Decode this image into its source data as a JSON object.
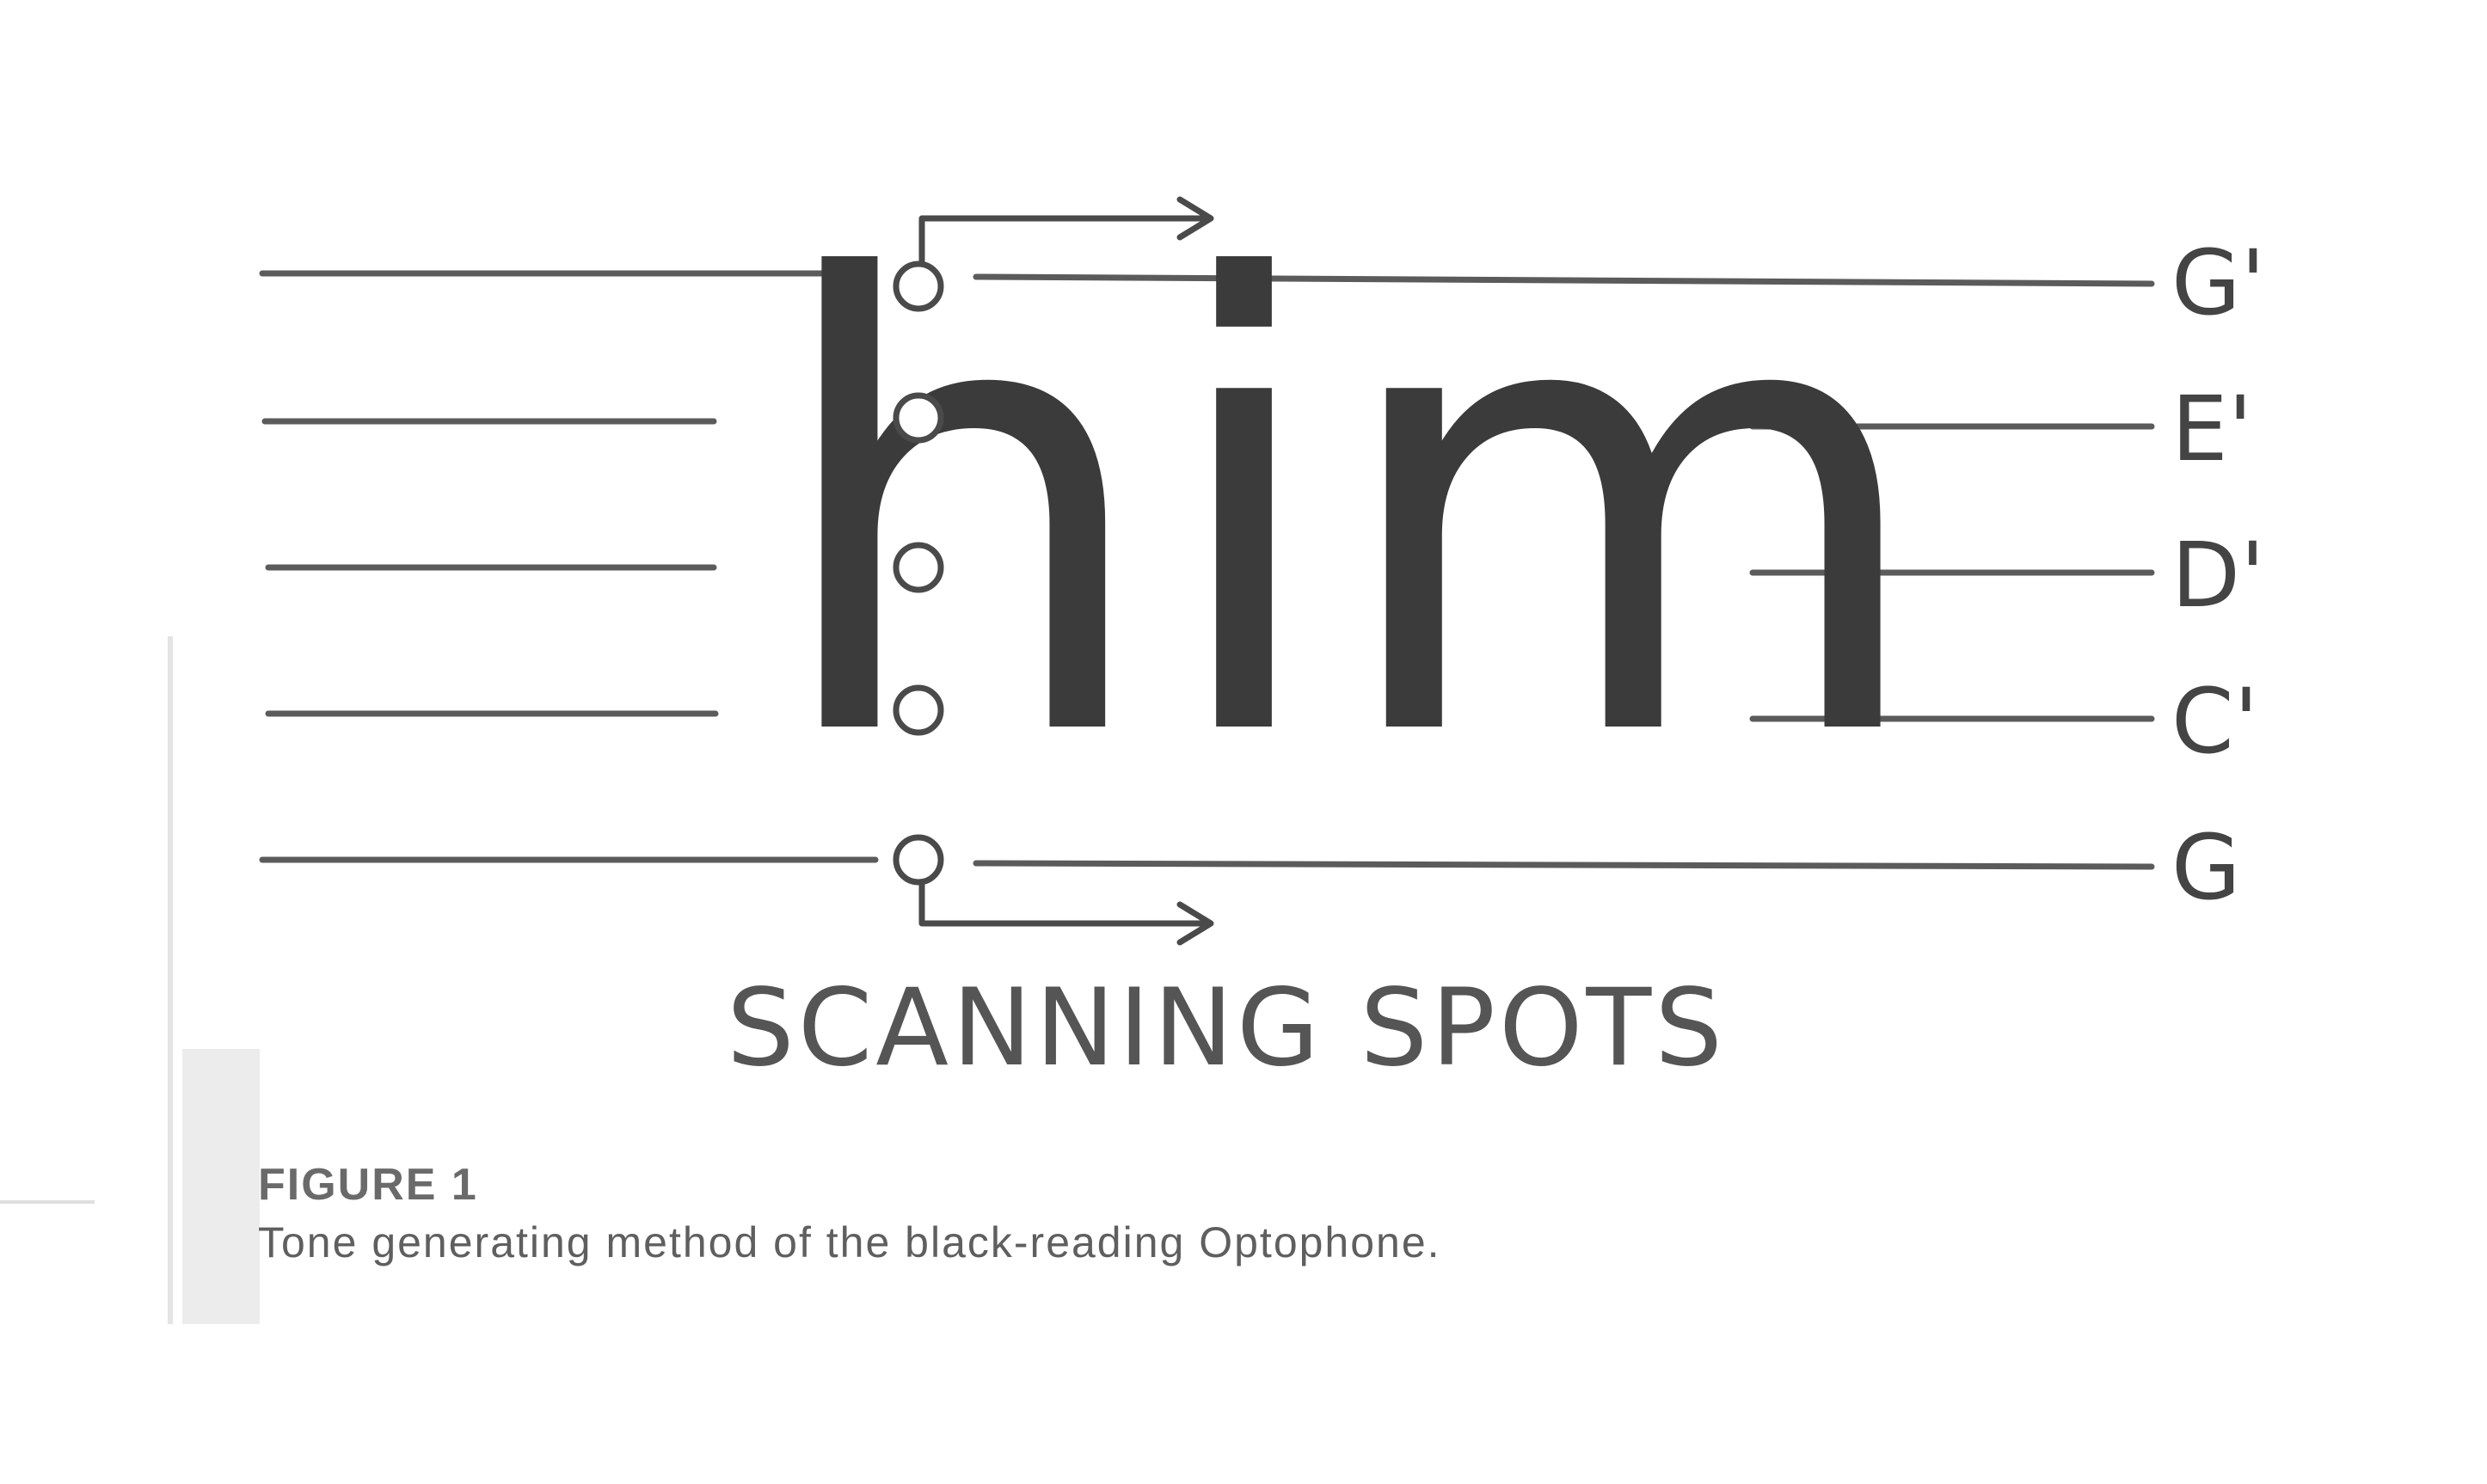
{
  "diagram": {
    "word": "him",
    "scan_label": "SCANNING SPOTS",
    "notes": [
      "G'",
      "E'",
      "D'",
      "C'",
      "G"
    ]
  },
  "caption": {
    "number": "FIGURE 1",
    "text": "Tone generating method of the black-reading Optophone."
  }
}
